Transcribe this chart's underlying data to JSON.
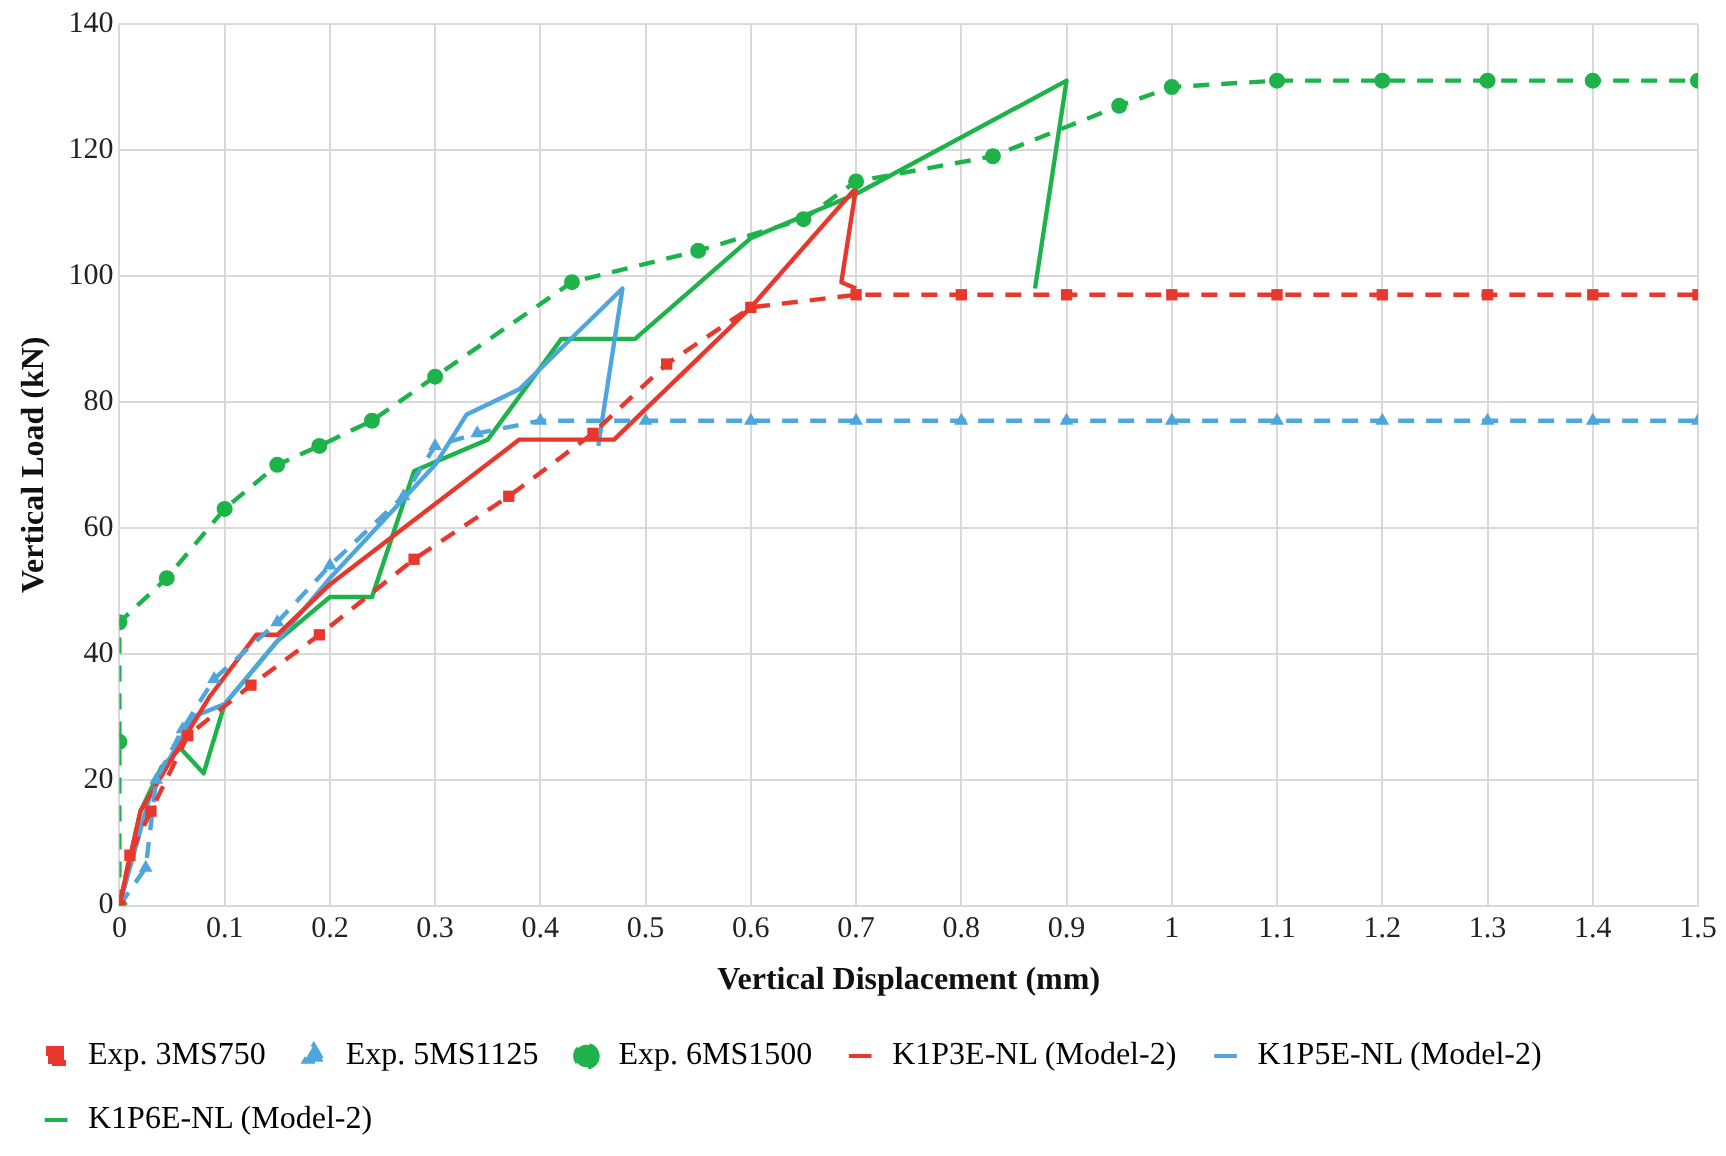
{
  "chart_data": {
    "type": "line",
    "xlabel": "Vertical Displacement (mm)",
    "ylabel": "Vertical Load (kN)",
    "xlim": [
      0,
      1.5
    ],
    "xticks": [
      0,
      0.1,
      0.2,
      0.3,
      0.4,
      0.5,
      0.6,
      0.7,
      0.8,
      0.9,
      1,
      1.1,
      1.2,
      1.3,
      1.4,
      1.5
    ],
    "ylim": [
      0,
      140
    ],
    "yticks": [
      0,
      20,
      40,
      60,
      80,
      100,
      120,
      140
    ],
    "grid": true,
    "legend": "bottom",
    "series": [
      {
        "name": "Exp. 3MS750",
        "color": "#e8372c",
        "marker": "square",
        "line_style": "dashed",
        "x": [
          0,
          0.01,
          0.03,
          0.065,
          0.125,
          0.19,
          0.28,
          0.37,
          0.45,
          0.52,
          0.6,
          0.7,
          0.8,
          0.9,
          1,
          1.1,
          1.2,
          1.3,
          1.4,
          1.5
        ],
        "values": [
          0,
          8,
          15,
          27,
          35,
          43,
          55,
          65,
          75,
          86,
          95,
          97,
          97,
          97,
          97,
          97,
          97,
          97,
          97,
          97
        ]
      },
      {
        "name": "Exp. 5MS1125",
        "color": "#4ea6dc",
        "marker": "triangle",
        "line_style": "dashed",
        "x": [
          0,
          0.025,
          0.035,
          0.06,
          0.09,
          0.15,
          0.2,
          0.27,
          0.3,
          0.34,
          0.4,
          0.5,
          0.6,
          0.7,
          0.8,
          0.9,
          1,
          1.1,
          1.2,
          1.3,
          1.4,
          1.5
        ],
        "values": [
          0,
          6,
          20,
          28,
          36,
          45,
          54,
          65,
          73,
          75,
          77,
          77,
          77,
          77,
          77,
          77,
          77,
          77,
          77,
          77,
          77,
          77
        ]
      },
      {
        "name": "Exp. 6MS1500",
        "color": "#1db34a",
        "marker": "circle",
        "line_style": "dashed",
        "x": [
          0,
          0,
          0,
          0.045,
          0.1,
          0.15,
          0.19,
          0.24,
          0.3,
          0.43,
          0.55,
          0.65,
          0.7,
          0.83,
          0.95,
          1,
          1.1,
          1.2,
          1.3,
          1.4,
          1.5
        ],
        "values": [
          0,
          26,
          45,
          52,
          63,
          70,
          73,
          77,
          84,
          99,
          104,
          109,
          115,
          119,
          127,
          130,
          131,
          131,
          131,
          131,
          131
        ]
      },
      {
        "name": "K1P3E-NL (Model-2)",
        "color": "#e8372c",
        "marker": "none",
        "line_style": "solid",
        "x": [
          0,
          0.02,
          0.045,
          0.085,
          0.13,
          0.15,
          0.2,
          0.38,
          0.47,
          0.6,
          0.7,
          0.686,
          0.7
        ],
        "values": [
          0,
          15,
          22,
          33,
          43,
          43,
          51,
          74,
          74,
          95,
          114,
          99,
          98
        ]
      },
      {
        "name": "K1P5E-NL (Model-2)",
        "color": "#4ea6dc",
        "marker": "none",
        "line_style": "solid",
        "x": [
          0,
          0.03,
          0.07,
          0.1,
          0.2,
          0.3,
          0.33,
          0.38,
          0.478,
          0.455
        ],
        "values": [
          0,
          18,
          30,
          32,
          52,
          70,
          78,
          82,
          98,
          73
        ]
      },
      {
        "name": "K1P6E-NL (Model-2)",
        "color": "#1db34a",
        "marker": "none",
        "line_style": "solid",
        "x": [
          0,
          0.02,
          0.04,
          0.058,
          0.08,
          0.1,
          0.15,
          0.2,
          0.24,
          0.28,
          0.35,
          0.42,
          0.49,
          0.6,
          0.7,
          0.9,
          0.87
        ],
        "values": [
          0,
          15,
          22,
          25,
          21,
          32,
          42,
          49,
          49,
          69,
          74,
          90,
          90,
          106,
          113,
          131,
          98
        ]
      }
    ]
  }
}
